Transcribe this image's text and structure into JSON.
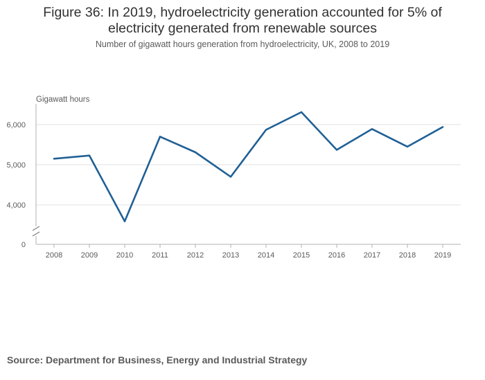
{
  "title_line1": "Figure 36: In 2019, hydroelectricity generation accounted for 5% of",
  "title_line2": "electricity generated from renewable sources",
  "subtitle": "Number of gigawatt hours generation from hydroelectricity, UK, 2008 to 2019",
  "source": "Source: Department for Business, Energy and Industrial Strategy",
  "colors": {
    "line": "#206095",
    "grid": "#e0e0e0",
    "axis": "#b0b0b0"
  },
  "chart_data": {
    "type": "line",
    "title": "Figure 36: In 2019, hydroelectricity generation accounted for 5% of electricity generated from renewable sources",
    "subtitle": "Number of gigawatt hours generation from hydroelectricity, UK, 2008 to 2019",
    "xlabel": "",
    "ylabel": "Gigawatt hours",
    "categories": [
      "2008",
      "2009",
      "2010",
      "2011",
      "2012",
      "2013",
      "2014",
      "2015",
      "2016",
      "2017",
      "2018",
      "2019"
    ],
    "series": [
      {
        "name": "Hydroelectricity",
        "values": [
          5150,
          5230,
          3590,
          5700,
          5310,
          4700,
          5870,
          6310,
          5370,
          5890,
          5450,
          5940
        ]
      }
    ],
    "yticks": [
      4000,
      5000,
      6000
    ],
    "ytick_labels": [
      "4,000",
      "5,000",
      "6,000"
    ],
    "zero_label": "0",
    "ylim": [
      3000,
      6500
    ],
    "axis_break": true,
    "grid": true,
    "legend": "none"
  }
}
